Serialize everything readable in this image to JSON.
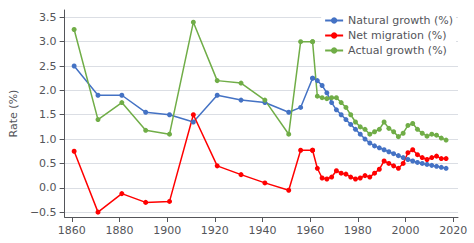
{
  "chart_data": {
    "type": "line",
    "ylabel": "Rate (%)",
    "x": [
      1861,
      1871,
      1881,
      1891,
      1901,
      1911,
      1921,
      1931,
      1941,
      1951,
      1956,
      1961,
      1961,
      1963,
      1965,
      1967,
      1969,
      1971,
      1973,
      1975,
      1977,
      1979,
      1981,
      1983,
      1985,
      1987,
      1989,
      1991,
      1993,
      1995,
      1997,
      1999,
      2001,
      2003,
      2005,
      2007,
      2009,
      2011,
      2013,
      2015,
      2017
    ],
    "series": [
      {
        "name": "Natural growth (%)",
        "color": "#4472C4",
        "marker": "circle",
        "values": [
          2.5,
          1.9,
          1.9,
          1.55,
          1.5,
          1.35,
          1.9,
          1.8,
          1.75,
          1.55,
          1.65,
          2.25,
          2.25,
          2.2,
          2.1,
          1.95,
          1.75,
          1.6,
          1.5,
          1.4,
          1.3,
          1.2,
          1.1,
          1.0,
          0.92,
          0.86,
          0.82,
          0.78,
          0.74,
          0.7,
          0.66,
          0.62,
          0.58,
          0.55,
          0.52,
          0.5,
          0.48,
          0.46,
          0.44,
          0.42,
          0.4
        ]
      },
      {
        "name": "Net migration (%)",
        "color": "#FF0000",
        "marker": "circle",
        "values": [
          0.75,
          -0.5,
          -0.12,
          -0.3,
          -0.28,
          1.5,
          0.45,
          0.27,
          0.1,
          -0.05,
          0.77,
          0.77,
          0.77,
          0.4,
          0.2,
          0.18,
          0.22,
          0.35,
          0.3,
          0.28,
          0.22,
          0.18,
          0.2,
          0.25,
          0.22,
          0.3,
          0.38,
          0.55,
          0.5,
          0.45,
          0.4,
          0.5,
          0.72,
          0.78,
          0.68,
          0.62,
          0.58,
          0.62,
          0.65,
          0.6,
          0.6
        ]
      },
      {
        "name": "Actual growth (%)",
        "color": "#70AD47",
        "marker": "circle",
        "values": [
          3.25,
          1.4,
          1.75,
          1.18,
          1.1,
          3.4,
          2.2,
          2.15,
          1.8,
          1.1,
          3.0,
          3.0,
          3.0,
          1.88,
          1.85,
          1.83,
          1.85,
          1.85,
          1.75,
          1.65,
          1.5,
          1.35,
          1.25,
          1.2,
          1.1,
          1.15,
          1.2,
          1.35,
          1.22,
          1.15,
          1.05,
          1.12,
          1.28,
          1.32,
          1.2,
          1.12,
          1.06,
          1.1,
          1.08,
          1.02,
          0.98
        ]
      }
    ],
    "xlim": [
      1857,
      2022
    ],
    "xticks": [
      1860,
      1880,
      1900,
      1920,
      1940,
      1960,
      1980,
      2000,
      2020
    ],
    "ylim": [
      -0.6,
      3.65
    ],
    "yticks": [
      {
        "value": -0.5,
        "label": "−0.5"
      },
      {
        "value": 0.0,
        "label": "0.0"
      },
      0.5,
      {
        "value": 1.0,
        "label": "1.0"
      },
      1.5,
      {
        "value": 2.0,
        "label": "2.0"
      },
      2.5,
      {
        "value": 3.0,
        "label": "3.0"
      },
      3.5
    ],
    "grid": true,
    "legend": "upper right"
  }
}
